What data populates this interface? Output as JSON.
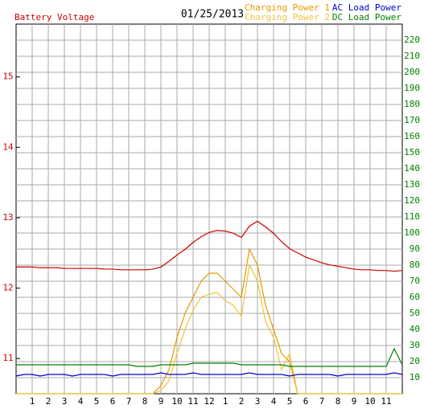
{
  "chart_data": {
    "type": "line",
    "title": "01/25/2013",
    "x": [
      0,
      0.5,
      1,
      1.5,
      2,
      2.5,
      3,
      3.5,
      4,
      4.5,
      5,
      5.5,
      6,
      6.5,
      7,
      7.5,
      8,
      8.5,
      9,
      9.5,
      10,
      10.5,
      11,
      11.5,
      12,
      12.5,
      13,
      13.5,
      14,
      14.5,
      15,
      15.5,
      16,
      16.5,
      17,
      17.5,
      18,
      18.5,
      19,
      19.5,
      20,
      20.5,
      21,
      21.5,
      22,
      22.5,
      23,
      23.5,
      24
    ],
    "xlim": [
      0,
      24
    ],
    "xticks": [
      1,
      2,
      3,
      4,
      5,
      6,
      7,
      8,
      9,
      10,
      11,
      12,
      {
        "value": 13,
        "label": "1"
      },
      {
        "value": 14,
        "label": "2"
      },
      {
        "value": 15,
        "label": "3"
      },
      {
        "value": 16,
        "label": "4"
      },
      {
        "value": 17,
        "label": "5"
      },
      {
        "value": 18,
        "label": "6"
      },
      {
        "value": 19,
        "label": "7"
      },
      {
        "value": 20,
        "label": "8"
      },
      {
        "value": 21,
        "label": "9"
      },
      {
        "value": 22,
        "label": "10"
      },
      {
        "value": 23,
        "label": "11"
      }
    ],
    "ylim": [
      10.5,
      15.75
    ],
    "yticks": [
      11,
      12,
      13,
      14,
      15
    ],
    "y2lim": [
      0,
      230
    ],
    "y2ticks": [
      10,
      20,
      30,
      40,
      50,
      60,
      70,
      80,
      90,
      100,
      110,
      120,
      130,
      140,
      150,
      160,
      170,
      180,
      190,
      200,
      210,
      220
    ],
    "grid": true,
    "series": [
      {
        "name": "Battery Voltage",
        "color": "#cc0000",
        "values": [
          12.3,
          12.3,
          12.3,
          12.29,
          12.29,
          12.29,
          12.28,
          12.28,
          12.28,
          12.28,
          12.28,
          12.27,
          12.27,
          12.26,
          12.26,
          12.26,
          12.26,
          12.27,
          12.3,
          12.38,
          12.47,
          12.55,
          12.65,
          12.73,
          12.79,
          12.82,
          12.81,
          12.78,
          12.72,
          12.88,
          12.95,
          12.87,
          12.78,
          12.66,
          12.56,
          12.5,
          12.44,
          12.4,
          12.36,
          12.33,
          12.31,
          12.29,
          12.27,
          12.26,
          12.26,
          12.25,
          12.25,
          12.24,
          12.25
        ]
      },
      {
        "name": "Charging Power 1",
        "color": "#e69a00",
        "axis": "y2",
        "values": [
          0,
          0,
          0,
          0,
          0,
          0,
          0,
          0,
          0,
          0,
          0,
          0,
          0,
          0,
          0,
          0,
          0,
          0,
          5,
          15,
          35,
          50,
          60,
          70,
          75,
          75,
          70,
          65,
          60,
          90,
          80,
          55,
          40,
          25,
          20,
          0,
          0,
          0,
          0,
          0,
          0,
          0,
          0,
          0,
          0,
          0,
          0,
          0,
          0
        ]
      },
      {
        "name": "Charging Power 2",
        "color": "#f2c23a",
        "axis": "y2",
        "values": [
          0,
          0,
          0,
          0,
          0,
          0,
          0,
          0,
          0,
          0,
          0,
          0,
          0,
          0,
          0,
          0,
          0,
          0,
          2,
          8,
          25,
          40,
          52,
          60,
          62,
          63,
          58,
          55,
          48,
          80,
          70,
          45,
          35,
          15,
          25,
          0,
          0,
          0,
          0,
          0,
          0,
          0,
          0,
          0,
          0,
          0,
          0,
          0,
          0
        ]
      },
      {
        "name": "AC Load Power",
        "color": "#0000cc",
        "axis": "y2",
        "values": [
          11,
          12,
          12,
          11,
          12,
          12,
          12,
          11,
          12,
          12,
          12,
          12,
          11,
          12,
          12,
          12,
          12,
          12,
          13,
          12,
          12,
          12,
          13,
          12,
          12,
          12,
          12,
          12,
          12,
          13,
          12,
          12,
          12,
          12,
          11,
          12,
          12,
          12,
          12,
          12,
          11,
          12,
          12,
          12,
          12,
          12,
          12,
          13,
          12
        ]
      },
      {
        "name": "DC Load Power",
        "color": "#008000",
        "axis": "y2",
        "values": [
          18,
          18,
          18,
          18,
          18,
          18,
          18,
          18,
          18,
          18,
          18,
          18,
          18,
          18,
          18,
          17,
          17,
          17,
          18,
          18,
          18,
          18,
          19,
          19,
          19,
          19,
          19,
          19,
          18,
          18,
          18,
          18,
          18,
          18,
          17,
          17,
          17,
          17,
          17,
          17,
          17,
          17,
          17,
          17,
          17,
          17,
          17,
          28,
          18
        ]
      }
    ]
  }
}
